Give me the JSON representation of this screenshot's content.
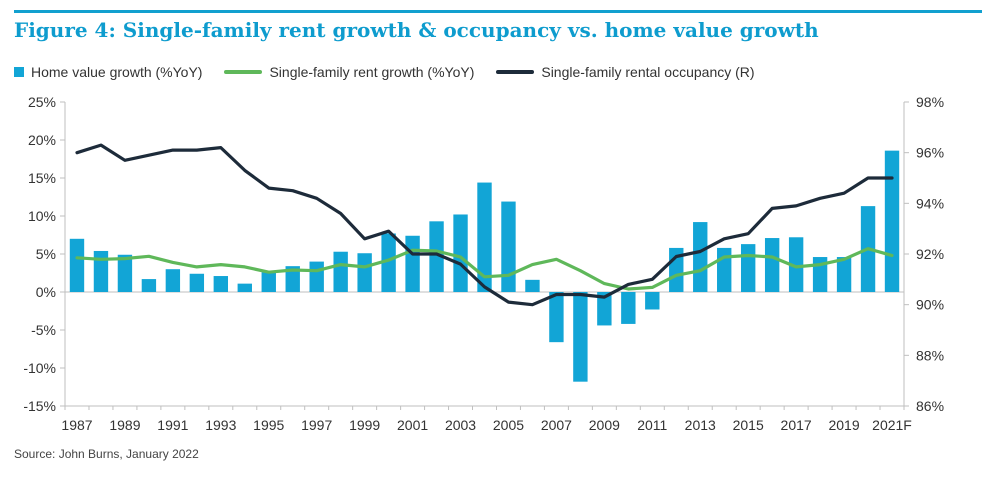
{
  "figure": {
    "title": "Figure 4: Single-family rent growth & occupancy vs. home value growth",
    "source": "Source: John Burns, January 2022"
  },
  "colors": {
    "accent": "#0e9cce",
    "bars": "#12a5d6",
    "rent_line": "#5fb85a",
    "occupancy_line": "#1d2b3a"
  },
  "legend": [
    {
      "label": "Home value growth (%YoY)",
      "type": "box",
      "color": "#12a5d6"
    },
    {
      "label": "Single-family rent growth (%YoY)",
      "type": "line",
      "color": "#5fb85a"
    },
    {
      "label": "Single-family rental occupancy (R)",
      "type": "line",
      "color": "#1d2b3a"
    }
  ],
  "chart_data": {
    "type": "bar+line",
    "title": "Figure 4: Single-family rent growth & occupancy vs. home value growth",
    "x": [
      "1987",
      "1988",
      "1989",
      "1990",
      "1991",
      "1992",
      "1993",
      "1994",
      "1995",
      "1996",
      "1997",
      "1998",
      "1999",
      "2000",
      "2001",
      "2002",
      "2003",
      "2004",
      "2005",
      "2006",
      "2007",
      "2008",
      "2009",
      "2010",
      "2011",
      "2012",
      "2013",
      "2014",
      "2015",
      "2016",
      "2017",
      "2018",
      "2019",
      "2020",
      "2021F"
    ],
    "x_tick_labels": [
      "1987",
      "1989",
      "1991",
      "1993",
      "1995",
      "1997",
      "1999",
      "2001",
      "2003",
      "2005",
      "2007",
      "2009",
      "2011",
      "2013",
      "2015",
      "2017",
      "2019",
      "2021F"
    ],
    "y_left": {
      "ticks": [
        "25%",
        "20%",
        "15%",
        "10%",
        "5%",
        "0%",
        "-5%",
        "-10%",
        "-15%"
      ],
      "range": [
        -15,
        25
      ]
    },
    "y_right": {
      "ticks": [
        "98%",
        "96%",
        "94%",
        "92%",
        "90%",
        "88%",
        "86%"
      ],
      "range": [
        86,
        98
      ]
    },
    "grid": false,
    "legend_position": "top-left",
    "series": [
      {
        "name": "Home value growth (%YoY)",
        "type": "bar",
        "axis": "left",
        "values": [
          7.0,
          5.4,
          4.9,
          1.7,
          3.0,
          2.4,
          2.1,
          1.1,
          2.6,
          3.4,
          4.0,
          5.3,
          5.1,
          7.7,
          7.4,
          9.3,
          10.2,
          14.4,
          11.9,
          1.6,
          -6.6,
          -11.8,
          -4.4,
          -4.2,
          -2.3,
          5.8,
          9.2,
          5.8,
          6.3,
          7.1,
          7.2,
          4.6,
          4.6,
          11.3,
          18.6
        ]
      },
      {
        "name": "Single-family rent growth (%YoY)",
        "type": "line",
        "axis": "left",
        "values": [
          4.5,
          4.3,
          4.4,
          4.7,
          3.9,
          3.3,
          3.6,
          3.3,
          2.6,
          2.9,
          2.8,
          3.6,
          3.3,
          4.2,
          5.5,
          5.4,
          4.6,
          2.0,
          2.2,
          3.6,
          4.3,
          2.8,
          1.1,
          0.4,
          0.6,
          2.2,
          2.8,
          4.6,
          4.8,
          4.6,
          3.3,
          3.6,
          4.3,
          5.7,
          4.8
        ]
      },
      {
        "name": "Single-family rental occupancy (R)",
        "type": "line",
        "axis": "right",
        "values": [
          96.0,
          96.3,
          95.7,
          95.9,
          96.1,
          96.1,
          96.2,
          95.3,
          94.6,
          94.5,
          94.2,
          93.6,
          92.6,
          92.9,
          92.0,
          92.0,
          91.6,
          90.7,
          90.1,
          90.0,
          90.4,
          90.4,
          90.3,
          90.8,
          91.0,
          91.9,
          92.1,
          92.6,
          92.8,
          93.8,
          93.9,
          94.2,
          94.4,
          95.0,
          95.0
        ]
      }
    ]
  }
}
